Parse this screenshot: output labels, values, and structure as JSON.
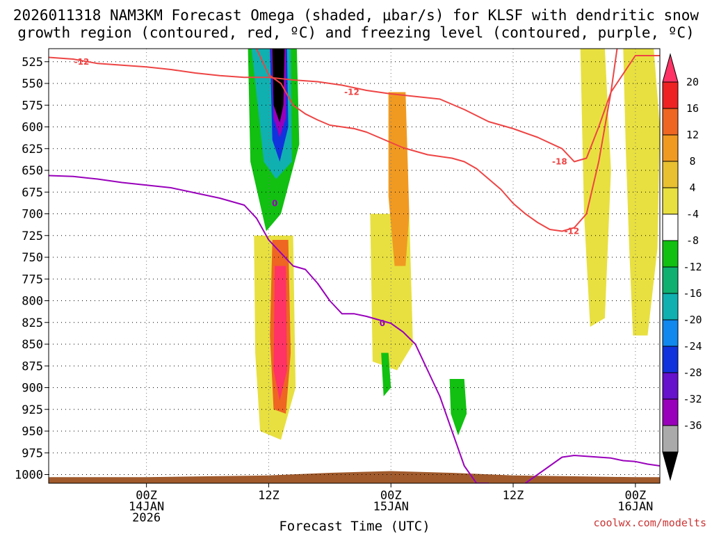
{
  "chart_data": {
    "type": "heatmap",
    "title_line1": "2026011318 NAM3KM Forecast Omega (shaded, μbar/s) for KLSF with dendritic snow",
    "title_line2": "growth region (contoured, red, ºC) and freezing level (contoured, purple, ºC)",
    "xlabel": "Forecast Time (UTC)",
    "credit": "coolwx.com/modelts",
    "ylim": [
      1010,
      510
    ],
    "xlim": [
      -8,
      42
    ],
    "y_ticks": [
      525,
      550,
      575,
      600,
      625,
      650,
      675,
      700,
      725,
      750,
      775,
      800,
      825,
      850,
      875,
      900,
      925,
      950,
      975,
      1000
    ],
    "x_ticks": [
      {
        "t": 0,
        "line1": "00Z",
        "line2": "14JAN",
        "line3": "2026"
      },
      {
        "t": 10,
        "line1": "12Z",
        "line2": "",
        "line3": ""
      },
      {
        "t": 20,
        "line1": "00Z",
        "line2": "15JAN",
        "line3": ""
      },
      {
        "t": 30,
        "line1": "12Z",
        "line2": "",
        "line3": ""
      },
      {
        "t": 40,
        "line1": "00Z",
        "line2": "16JAN",
        "line3": ""
      }
    ],
    "colorbar": {
      "labels": [
        "20",
        "16",
        "12",
        "8",
        "4",
        "-4",
        "-8",
        "-12",
        "-16",
        "-20",
        "-24",
        "-28",
        "-32",
        "-36"
      ],
      "colors": [
        "#ff3366",
        "#ee2222",
        "#ee6622",
        "#f09a22",
        "#e8c030",
        "#e8e040",
        "#ffffff",
        "#11c011",
        "#10b070",
        "#10b0b0",
        "#1188ee",
        "#1133dd",
        "#6611cc",
        "#9900bb",
        "#aaaaaa",
        "#000000"
      ]
    },
    "omega_regions": [
      {
        "label": "descent",
        "color": "#e8e040",
        "points": [
          [
            39,
            510
          ],
          [
            41.5,
            510
          ],
          [
            42,
            600
          ],
          [
            41.8,
            740
          ],
          [
            41,
            840
          ],
          [
            39.8,
            840
          ],
          [
            39.5,
            740
          ],
          [
            39.2,
            620
          ]
        ]
      },
      {
        "label": "descent",
        "color": "#e8e040",
        "points": [
          [
            35.5,
            510
          ],
          [
            37.5,
            510
          ],
          [
            38,
            650
          ],
          [
            37.5,
            820
          ],
          [
            36.3,
            830
          ],
          [
            35.8,
            700
          ]
        ]
      },
      {
        "label": "descent",
        "color": "#e8e040",
        "points": [
          [
            18.3,
            700
          ],
          [
            21.5,
            700
          ],
          [
            21.8,
            850
          ],
          [
            20.5,
            880
          ],
          [
            18.5,
            870
          ]
        ]
      },
      {
        "label": "descent",
        "color": "#e8e040",
        "points": [
          [
            8.8,
            725
          ],
          [
            12.0,
            725
          ],
          [
            12.2,
            900
          ],
          [
            11.0,
            960
          ],
          [
            9.3,
            950
          ],
          [
            8.9,
            860
          ]
        ]
      },
      {
        "label": "ascent",
        "color": "#11c011",
        "points": [
          [
            8.3,
            510
          ],
          [
            12.3,
            510
          ],
          [
            12.5,
            620
          ],
          [
            11.0,
            700
          ],
          [
            9.8,
            720
          ],
          [
            8.5,
            640
          ]
        ]
      },
      {
        "label": "ascent",
        "color": "#10b0b0",
        "points": [
          [
            8.6,
            510
          ],
          [
            11.8,
            510
          ],
          [
            11.9,
            640
          ],
          [
            10.6,
            660
          ],
          [
            9.6,
            640
          ]
        ]
      },
      {
        "label": "ascent",
        "color": "#1133dd",
        "points": [
          [
            10.1,
            510
          ],
          [
            11.5,
            510
          ],
          [
            11.6,
            600
          ],
          [
            10.9,
            640
          ],
          [
            10.3,
            615
          ]
        ]
      },
      {
        "label": "ascent",
        "color": "#9900bb",
        "points": [
          [
            10.2,
            510
          ],
          [
            11.4,
            510
          ],
          [
            11.4,
            590
          ],
          [
            10.9,
            612
          ],
          [
            10.4,
            590
          ]
        ]
      },
      {
        "label": "ascent",
        "color": "#000000",
        "points": [
          [
            10.3,
            510
          ],
          [
            11.3,
            510
          ],
          [
            11.2,
            575
          ],
          [
            10.9,
            595
          ],
          [
            10.4,
            575
          ]
        ]
      },
      {
        "label": "ascent",
        "color": "#11c011",
        "points": [
          [
            19.2,
            860
          ],
          [
            19.8,
            860
          ],
          [
            20.0,
            900
          ],
          [
            19.4,
            910
          ]
        ]
      },
      {
        "label": "ascent",
        "color": "#11c011",
        "points": [
          [
            24.8,
            890
          ],
          [
            26.0,
            890
          ],
          [
            26.2,
            930
          ],
          [
            25.5,
            955
          ],
          [
            24.9,
            930
          ]
        ]
      },
      {
        "label": "descent",
        "color": "#f09a22",
        "points": [
          [
            19.8,
            560
          ],
          [
            21.2,
            560
          ],
          [
            21.5,
            700
          ],
          [
            21.2,
            760
          ],
          [
            20.3,
            760
          ],
          [
            19.8,
            680
          ]
        ]
      },
      {
        "label": "descent",
        "color": "#ee6622",
        "points": [
          [
            10.3,
            730
          ],
          [
            11.6,
            730
          ],
          [
            11.8,
            860
          ],
          [
            11.4,
            930
          ],
          [
            10.4,
            925
          ],
          [
            10.1,
            840
          ]
        ]
      },
      {
        "label": "descent",
        "color": "#ff3366",
        "points": [
          [
            10.5,
            760
          ],
          [
            11.4,
            760
          ],
          [
            11.5,
            880
          ],
          [
            10.9,
            915
          ],
          [
            10.4,
            880
          ]
        ]
      }
    ],
    "series": [
      {
        "name": "dgz_-12_upper",
        "color": "#ee4444",
        "t": [
          -8,
          -6,
          -4,
          -2,
          0,
          2,
          4,
          6,
          8,
          10,
          12,
          14,
          16,
          18,
          20,
          22,
          24,
          26,
          28,
          30,
          32,
          34,
          35,
          36,
          37,
          38,
          40,
          42
        ],
        "p": [
          520,
          522,
          527,
          529,
          531,
          534,
          538,
          541,
          543,
          543,
          546,
          548,
          552,
          558,
          562,
          565,
          568,
          580,
          594,
          602,
          612,
          625,
          640,
          636,
          600,
          560,
          518,
          518
        ]
      },
      {
        "name": "dgz_-12_lower",
        "color": "#ee4444",
        "t": [
          9,
          10,
          11,
          12,
          13,
          14,
          15,
          16,
          17,
          18,
          19,
          20,
          21,
          22,
          23,
          24,
          25,
          26,
          27,
          28,
          29,
          30,
          31,
          32,
          33,
          34,
          35,
          36,
          37,
          38,
          38.5
        ],
        "p": [
          510,
          540,
          550,
          575,
          585,
          592,
          598,
          600,
          602,
          606,
          612,
          618,
          624,
          628,
          632,
          634,
          636,
          640,
          648,
          660,
          672,
          688,
          700,
          710,
          718,
          720,
          716,
          700,
          640,
          560,
          510
        ]
      },
      {
        "name": "freezing_level",
        "color": "#9900bb",
        "t": [
          -8,
          -6,
          -4,
          -2,
          0,
          2,
          4,
          6,
          8,
          9,
          10,
          11,
          12,
          13,
          14,
          15,
          16,
          17,
          18,
          19,
          20,
          21,
          22,
          23,
          24,
          25,
          26,
          27,
          28
        ],
        "p": [
          656,
          657,
          660,
          664,
          667,
          670,
          676,
          682,
          690,
          705,
          730,
          745,
          760,
          764,
          780,
          800,
          815,
          815,
          818,
          822,
          826,
          836,
          850,
          880,
          910,
          950,
          990,
          1010,
          1010
        ]
      },
      {
        "name": "freezing_level_0",
        "color": "#9900bb",
        "t": [
          31,
          32,
          33,
          34,
          35,
          36,
          37,
          38,
          39,
          40,
          41,
          42
        ],
        "p": [
          1010,
          1000,
          990,
          980,
          978,
          979,
          980,
          981,
          984,
          985,
          988,
          990
        ]
      }
    ],
    "contour_labels": [
      {
        "text": "-12",
        "t": -5.3,
        "p": 525,
        "color": "#ee4444"
      },
      {
        "text": "-12",
        "t": 16.8,
        "p": 560,
        "color": "#ee4444"
      },
      {
        "text": "-18",
        "t": 33.8,
        "p": 640,
        "color": "#ee4444"
      },
      {
        "text": "-12",
        "t": 34.8,
        "p": 720,
        "color": "#ee4444"
      },
      {
        "text": "0",
        "t": 10.5,
        "p": 688,
        "color": "#9900bb"
      },
      {
        "text": "0",
        "t": 19.3,
        "p": 826,
        "color": "#9900bb"
      }
    ],
    "terrain": {
      "color": "#a05a2c",
      "t": [
        -8,
        0,
        5,
        10,
        15,
        20,
        25,
        30,
        35,
        40,
        42
      ],
      "p": [
        1003,
        1003,
        1002,
        1001,
        998,
        996,
        998,
        1001,
        1002,
        1003,
        1003
      ]
    }
  }
}
